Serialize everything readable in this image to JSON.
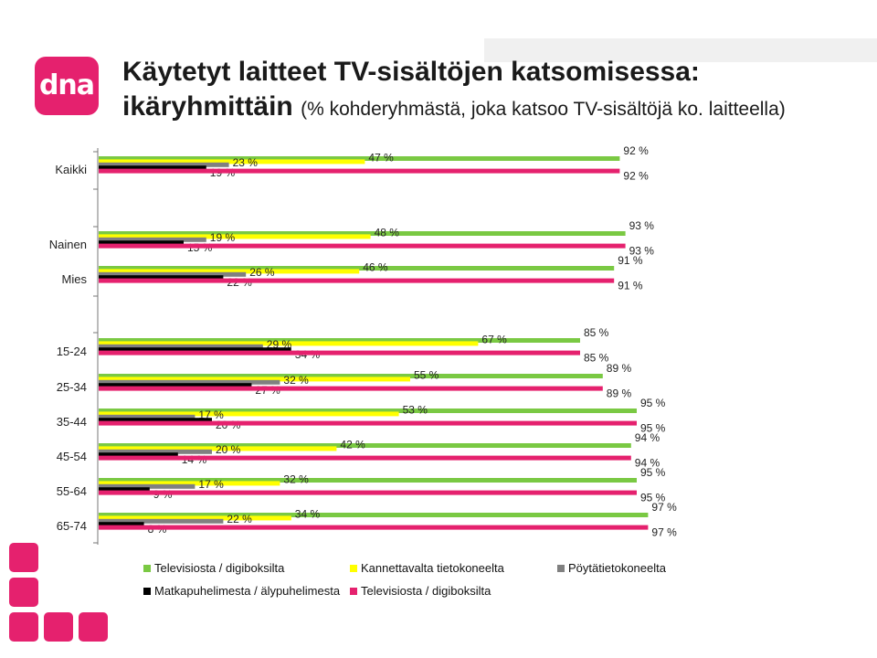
{
  "header": {
    "logo_text": "dna",
    "title_line1": "Käytetyt laitteet TV-sisältöjen katsomisessa:",
    "title_line2": "ikäryhmittäin",
    "title_sub": "(% kohderyhmästä, joka katsoo TV-sisältöjä ko. laitteella)"
  },
  "colors": {
    "tv": "#7ac943",
    "laptop": "#ffff00",
    "desktop": "#808080",
    "mobile": "#000000",
    "tv2": "#e5216e",
    "brand": "#e5216e"
  },
  "chart_data": {
    "type": "bar",
    "orientation": "horizontal",
    "xlim": [
      0,
      100
    ],
    "categories": [
      "Kaikki",
      "Nainen",
      "Mies",
      "15-24",
      "25-34",
      "35-44",
      "45-54",
      "55-64",
      "65-74"
    ],
    "series": [
      {
        "name": "Televisiosta / digiboksilta",
        "color": "#7ac943",
        "values": [
          92,
          93,
          91,
          85,
          89,
          95,
          94,
          95,
          97
        ]
      },
      {
        "name": "Kannettavalta tietokoneelta",
        "color": "#ffff00",
        "values": [
          47,
          48,
          46,
          67,
          55,
          53,
          42,
          32,
          34
        ]
      },
      {
        "name": "Pöytätietokoneelta",
        "color": "#808080",
        "values": [
          23,
          19,
          26,
          29,
          32,
          17,
          20,
          17,
          22
        ]
      },
      {
        "name": "Matkapuhelimesta / älypuhelimesta",
        "color": "#000000",
        "values": [
          19,
          15,
          22,
          34,
          27,
          20,
          14,
          9,
          8
        ]
      },
      {
        "name": "Televisiosta / digiboksilta",
        "color": "#e5216e",
        "values": [
          92,
          93,
          91,
          85,
          89,
          95,
          94,
          95,
          97
        ]
      }
    ],
    "value_suffix": " %",
    "legend_position": "bottom",
    "grid": false
  }
}
